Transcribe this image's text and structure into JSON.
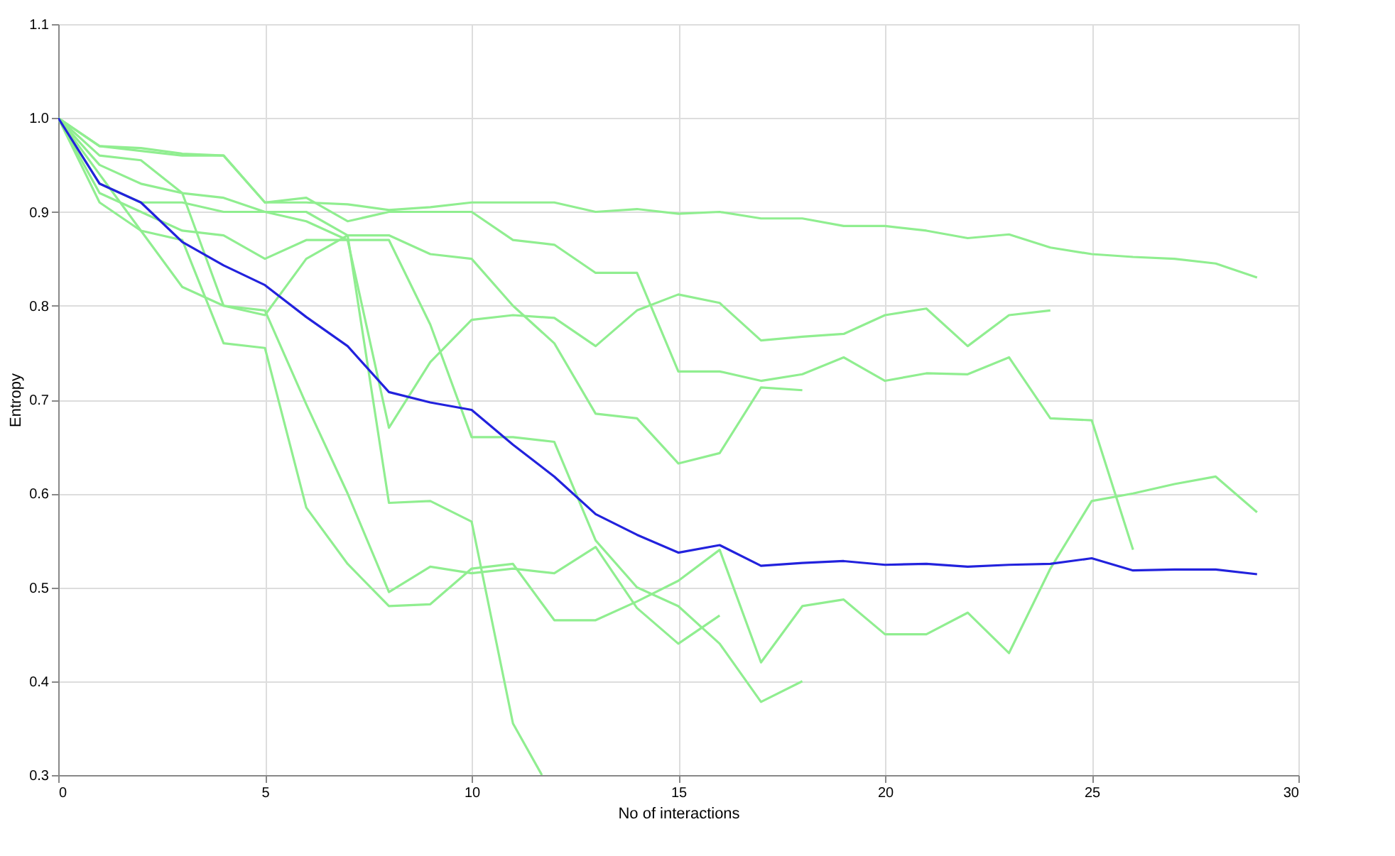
{
  "chart_data": {
    "type": "line",
    "xlabel": "No of interactions",
    "ylabel": "Entropy",
    "xlim": [
      0,
      30
    ],
    "ylim": [
      0.3,
      1.1
    ],
    "xticks": [
      0,
      5,
      10,
      15,
      20,
      25,
      30
    ],
    "yticks": [
      0.3,
      0.4,
      0.5,
      0.6,
      0.7,
      0.8,
      0.9,
      {
        "value": 1,
        "label": "1.0"
      },
      1.1
    ],
    "grid": true,
    "legend": false,
    "marker": "none",
    "line_style": "solid",
    "x": [
      0,
      1,
      2,
      3,
      4,
      5,
      6,
      7,
      8,
      9,
      10,
      11,
      12,
      13,
      14,
      15,
      16,
      17,
      18,
      19,
      20,
      21,
      22,
      23,
      24,
      25,
      26,
      27,
      28,
      29
    ],
    "series": [
      {
        "color": "#90ee90",
        "values": [
          1.0,
          0.97,
          0.968,
          0.962,
          0.96,
          0.91,
          0.91,
          0.908,
          0.902,
          0.905,
          0.91,
          0.91,
          0.91,
          0.9,
          0.903,
          0.898,
          0.9,
          0.893,
          0.893,
          0.885,
          0.885,
          0.88,
          0.872,
          0.876,
          0.862,
          0.855,
          0.852,
          0.85,
          0.845,
          0.83
        ]
      },
      {
        "color": "#90ee90",
        "values": [
          1.0,
          0.96,
          0.955,
          0.92,
          0.915,
          0.9,
          0.9,
          0.875,
          0.875,
          0.855,
          0.85,
          0.8,
          0.76,
          0.685,
          0.68,
          0.632,
          0.643,
          0.713,
          0.71,
          null,
          null,
          null,
          null,
          null,
          null,
          null,
          null,
          null,
          null,
          null
        ]
      },
      {
        "color": "#90ee90",
        "values": [
          1.0,
          0.97,
          0.965,
          0.96,
          0.96,
          0.91,
          0.915,
          0.89,
          0.9,
          0.9,
          0.9,
          0.87,
          0.865,
          0.835,
          0.835,
          0.73,
          0.73,
          0.72,
          0.727,
          0.745,
          0.72,
          0.728,
          0.727,
          0.745,
          0.68,
          0.678,
          0.54,
          null,
          null,
          null
        ]
      },
      {
        "color": "#90ee90",
        "values": [
          1.0,
          0.92,
          0.9,
          0.88,
          0.875,
          0.85,
          0.87,
          0.87,
          0.67,
          0.74,
          0.785,
          0.79,
          0.787,
          0.757,
          0.795,
          0.812,
          0.803,
          0.763,
          0.767,
          0.77,
          0.79,
          0.797,
          0.757,
          0.79,
          0.795,
          null,
          null,
          null,
          null,
          null
        ]
      },
      {
        "color": "#90ee90",
        "values": [
          1.0,
          0.95,
          0.93,
          0.92,
          0.8,
          0.795,
          0.695,
          0.6,
          0.495,
          0.522,
          0.515,
          0.52,
          0.515,
          0.543,
          0.478,
          0.44,
          0.47,
          null,
          null,
          null,
          null,
          null,
          null,
          null,
          null,
          null,
          null,
          null,
          null,
          null
        ]
      },
      {
        "color": "#90ee90",
        "values": [
          1.0,
          0.91,
          0.88,
          0.87,
          0.76,
          0.755,
          0.585,
          0.525,
          0.48,
          0.482,
          0.52,
          0.525,
          0.465,
          0.465,
          0.485,
          0.507,
          0.54,
          0.42,
          0.48,
          0.487,
          0.45,
          0.45,
          0.473,
          0.43,
          0.52,
          0.592,
          0.6,
          0.61,
          0.618,
          0.58
        ]
      },
      {
        "color": "#90ee90",
        "x": [
          0,
          1,
          2,
          3,
          4,
          5,
          6,
          7,
          8,
          9,
          10,
          11,
          11.7
        ],
        "values": [
          1.0,
          0.94,
          0.88,
          0.82,
          0.8,
          0.79,
          0.85,
          0.875,
          0.59,
          0.592,
          0.57,
          0.355,
          0.3
        ]
      },
      {
        "color": "#90ee90",
        "values": [
          1.0,
          0.93,
          0.91,
          0.91,
          0.9,
          0.9,
          0.89,
          0.87,
          0.87,
          0.78,
          0.66,
          0.66,
          0.655,
          0.55,
          0.5,
          0.48,
          0.44,
          0.378,
          0.4,
          null,
          null,
          null,
          null,
          null,
          null,
          null,
          null,
          null,
          null,
          null
        ]
      },
      {
        "color": "#2222dd",
        "values": [
          1.0,
          0.93,
          0.91,
          0.868,
          0.843,
          0.822,
          0.788,
          0.757,
          0.708,
          0.697,
          0.689,
          0.652,
          0.618,
          0.578,
          0.556,
          0.537,
          0.545,
          0.523,
          0.526,
          0.528,
          0.524,
          0.525,
          0.522,
          0.524,
          0.525,
          0.531,
          0.518,
          0.519,
          0.519,
          0.514
        ]
      }
    ]
  }
}
